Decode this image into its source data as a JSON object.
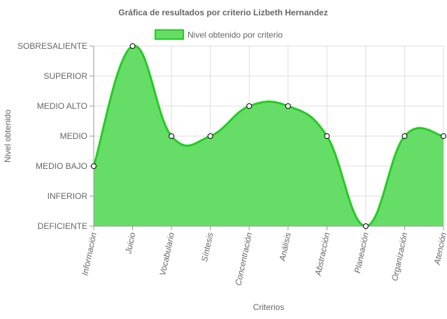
{
  "chart_data": {
    "type": "area",
    "title": "Gráfica de resultados por criterio Lizbeth Hernandez",
    "xlabel": "Criterios",
    "ylabel": "Nivel obtenido",
    "categories": [
      "Información",
      "Juicio",
      "Vocabulario",
      "Síntesis",
      "Concentración",
      "Análisis",
      "Abstracción",
      "Planeación",
      "Organización",
      "Atención"
    ],
    "levels": [
      "DEFICIENTE",
      "INFERIOR",
      "MEDIO BAJO",
      "MEDIO",
      "MEDIO ALTO",
      "SUPERIOR",
      "SOBRESALIENTE"
    ],
    "series": [
      {
        "name": "Nivel obtenido por criterio",
        "values": [
          2,
          6,
          3,
          3,
          4,
          4,
          3,
          0,
          3,
          3
        ]
      }
    ],
    "ylim": [
      0,
      6
    ],
    "grid": true,
    "legend": "top-center",
    "colors": {
      "fill": "#66dd66",
      "stroke": "#22cc22",
      "point_fill": "#ffffff",
      "point_stroke": "#000000",
      "grid": "#dddddd",
      "text": "#666666"
    }
  }
}
